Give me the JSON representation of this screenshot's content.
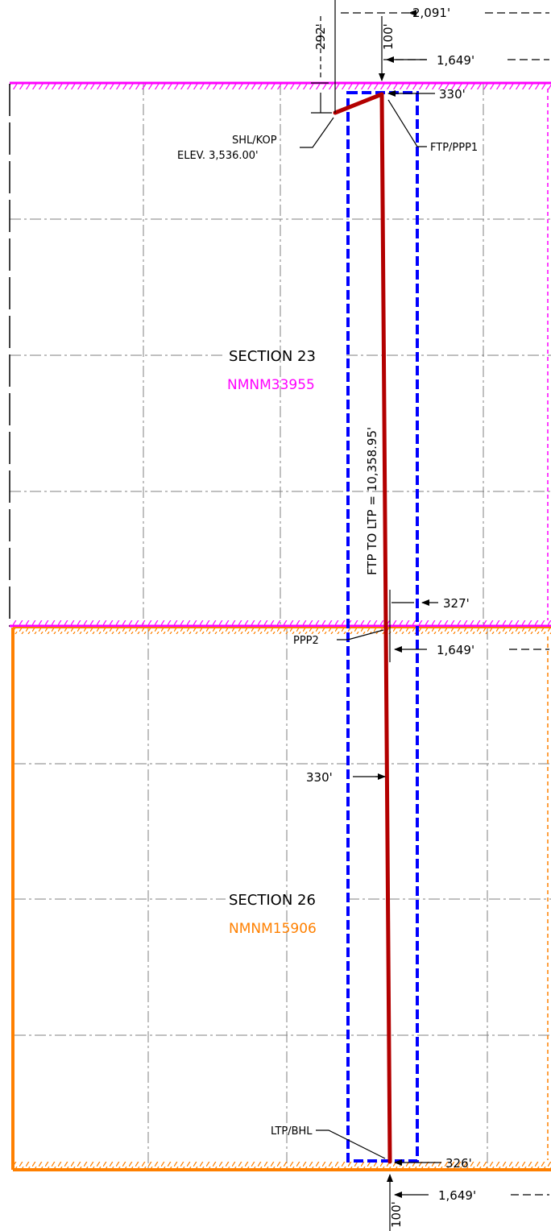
{
  "colors": {
    "section23_boundary": "#ff00ff",
    "section26_boundary": "#ff8000",
    "well_path": "#b30000",
    "setback_box": "#0000ff",
    "grid_lines": "#808080"
  },
  "dimensions": {
    "top_total": "2,091'",
    "top_ftp_offset": "1,649'",
    "shl_offset": "292'",
    "top_100": "100'",
    "ftp_setback": "330'",
    "ppp2_setback": "327'",
    "ppp2_offset": "1,649'",
    "mid_setback": "330'",
    "ltp_setback": "326'",
    "bottom_offset": "1,649'",
    "bottom_100": "100'"
  },
  "labels": {
    "shl_kop": "SHL/KOP",
    "elevation": "ELEV. 3,536.00'",
    "ftp_ppp1": "FTP/PPP1",
    "ppp2": "PPP2",
    "ltp_bhl": "LTP/BHL",
    "lateral_length": "FTP TO LTP = 10,358.95'"
  },
  "sections": {
    "s23": {
      "name": "SECTION 23",
      "lease": "NMNM33955"
    },
    "s26": {
      "name": "SECTION 26",
      "lease": "NMNM15906"
    }
  }
}
